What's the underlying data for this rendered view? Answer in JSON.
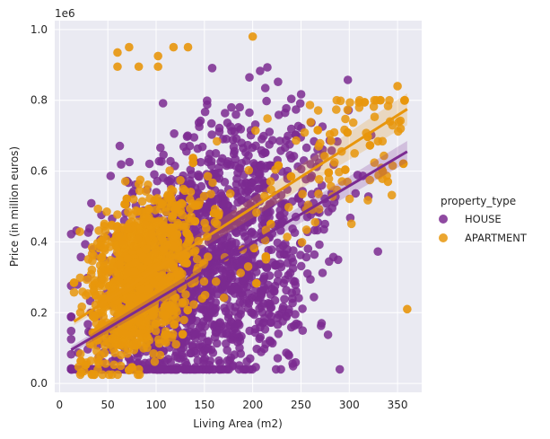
{
  "chart_data": {
    "type": "scatter",
    "title": "",
    "xlabel": "Living Area (m2)",
    "ylabel": "Price (in million euros)",
    "y_offset_label": "1e6",
    "xlim": [
      -5,
      375
    ],
    "ylim": [
      -25000,
      1025000
    ],
    "x_ticks": [
      0,
      50,
      100,
      150,
      200,
      250,
      300,
      350
    ],
    "y_ticks": [
      0,
      200000,
      400000,
      600000,
      800000,
      1000000
    ],
    "y_tick_labels": [
      "0.0",
      "0.2",
      "0.4",
      "0.6",
      "0.8",
      "1.0"
    ],
    "grid": true,
    "background": "#eaeaf2",
    "legend": {
      "title": "property_type",
      "placement": "right"
    },
    "series": [
      {
        "name": "HOUSE",
        "color": "#7b2a91",
        "regression": {
          "x": [
            12,
            360
          ],
          "y": [
            95000,
            655000
          ]
        },
        "x_range": [
          12,
          360
        ],
        "y_range": [
          40000,
          985000
        ]
      },
      {
        "name": "APARTMENT",
        "color": "#e8960c",
        "regression": {
          "x": [
            15,
            360
          ],
          "y": [
            175000,
            775000
          ]
        },
        "x_range": [
          15,
          360
        ],
        "y_range": [
          25000,
          985000
        ],
        "highlights": [
          {
            "x": 60,
            "y": 935000
          },
          {
            "x": 60,
            "y": 895000
          },
          {
            "x": 72,
            "y": 950000
          },
          {
            "x": 82,
            "y": 895000
          },
          {
            "x": 102,
            "y": 895000
          },
          {
            "x": 102,
            "y": 925000
          },
          {
            "x": 118,
            "y": 950000
          },
          {
            "x": 133,
            "y": 950000
          },
          {
            "x": 200,
            "y": 980000
          },
          {
            "x": 360,
            "y": 210000
          },
          {
            "x": 340,
            "y": 570000
          },
          {
            "x": 350,
            "y": 840000
          }
        ]
      }
    ]
  }
}
